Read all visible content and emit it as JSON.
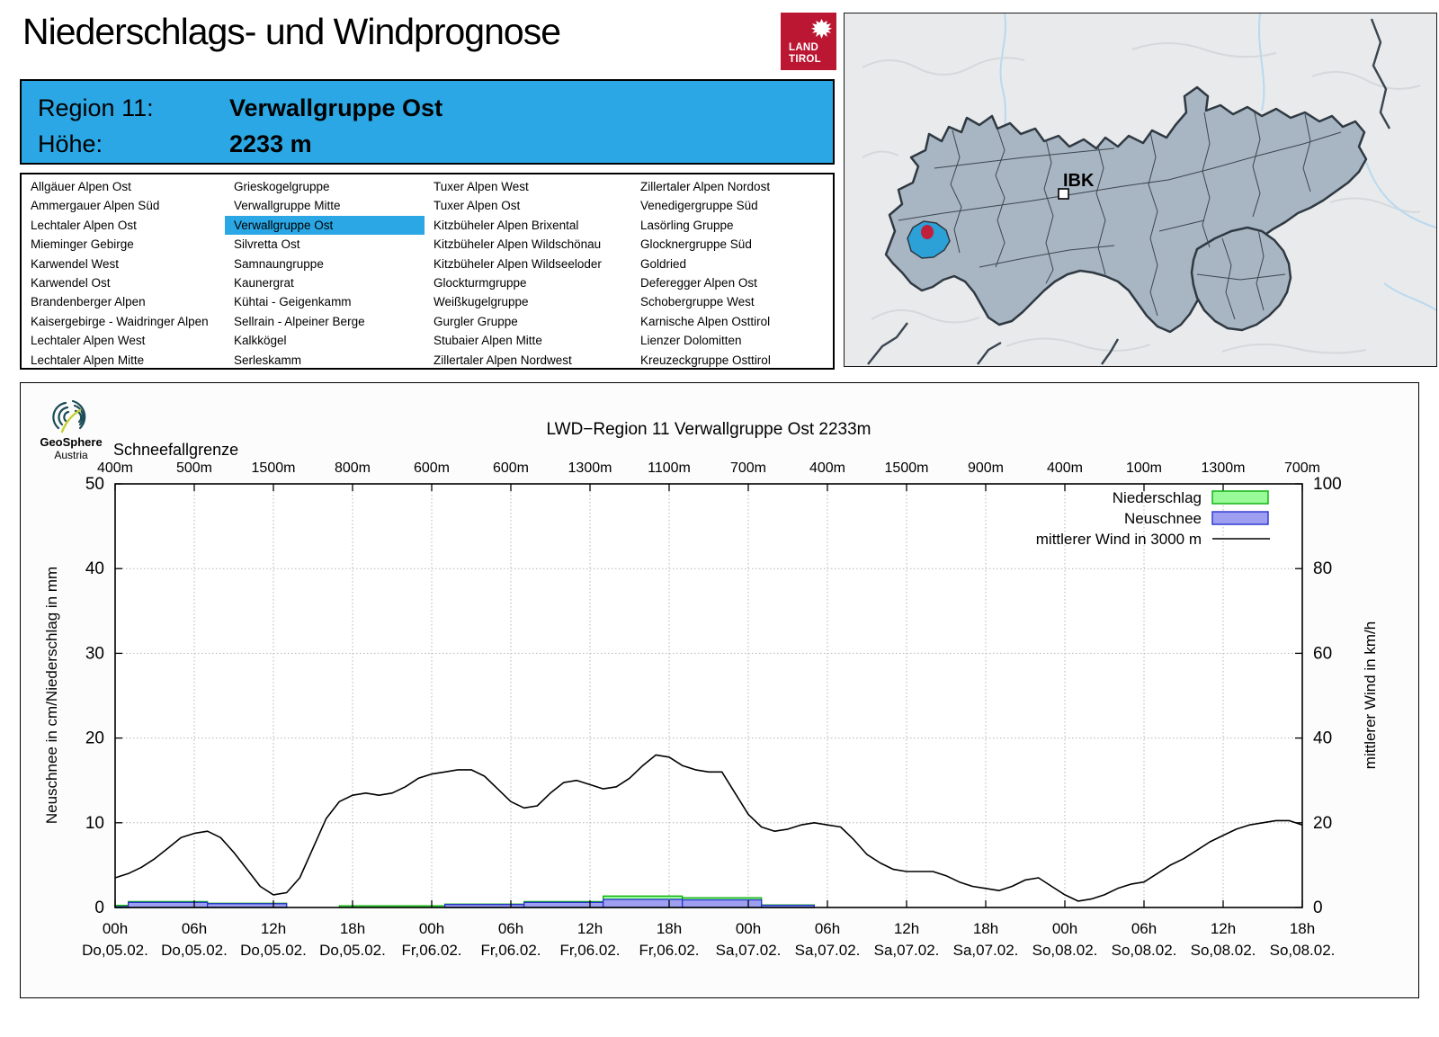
{
  "page": {
    "title": "Niederschlags- und Windprognose"
  },
  "land_tirol_logo": {
    "line1": "LAND",
    "line2": "TIROL",
    "color": "#bb1733",
    "icon": "tyrolean-eagle-icon"
  },
  "region_header": {
    "region_label": "Region 11:",
    "region_name": "Verwallgruppe Ost",
    "altitude_label": "Höhe:",
    "altitude_value": "2233 m",
    "bg_color": "#2aa7e4"
  },
  "region_list": {
    "selected": "Verwallgruppe Ost",
    "highlight_color": "#2aa7e4",
    "columns": [
      [
        "Allgäuer Alpen Ost",
        "Ammergauer Alpen Süd",
        "Lechtaler Alpen Ost",
        "Mieminger Gebirge",
        "Karwendel West",
        "Karwendel Ost",
        "Brandenberger Alpen",
        "Kaisergebirge - Waidringer Alpen",
        "Lechtaler Alpen West",
        "Lechtaler Alpen Mitte"
      ],
      [
        "Grieskogelgruppe",
        "Verwallgruppe Mitte",
        "Verwallgruppe Ost",
        "Silvretta Ost",
        "Samnaungruppe",
        "Kaunergrat",
        "Kühtai - Geigenkamm",
        "Sellrain - Alpeiner Berge",
        "Kalkkögel",
        "Serleskamm"
      ],
      [
        "Tuxer Alpen West",
        "Tuxer Alpen Ost",
        "Kitzbüheler Alpen Brixental",
        "Kitzbüheler Alpen Wildschönau",
        "Kitzbüheler Alpen Wildseeloder",
        "Glockturmgruppe",
        "Weißkugelgruppe",
        "Gurgler Gruppe",
        "Stubaier Alpen Mitte",
        "Zillertaler Alpen Nordwest"
      ],
      [
        "Zillertaler Alpen Nordost",
        "Venedigergruppe Süd",
        "Lasörling Gruppe",
        "Glocknergruppe Süd",
        "Goldried",
        "Deferegger Alpen Ost",
        "Schobergruppe West",
        "Karnische Alpen Osttirol",
        "Lienzer Dolomitten",
        "Kreuzeckgruppe Osttirol"
      ]
    ]
  },
  "map": {
    "city_label": "IBK",
    "region_fill": "#a8b5c2",
    "selected_fill": "#2ba1d8",
    "marker_color": "#c21f3a"
  },
  "geosphere_logo": {
    "name": "GeoSphere",
    "sub": "Austria"
  },
  "chart_data": {
    "type": "line",
    "title": "LWD−Region 11 Verwallgruppe Ost 2233m",
    "grid": true,
    "legend_position": "top-right",
    "snowline": {
      "label": "Schneefallgrenze",
      "values": [
        "400m",
        "500m",
        "1500m",
        "800m",
        "600m",
        "600m",
        "1300m",
        "1100m",
        "700m",
        "400m",
        "1500m",
        "900m",
        "400m",
        "100m",
        "1300m",
        "700m"
      ]
    },
    "left_axis": {
      "label": "Neuschnee in cm/Niederschlag in mm",
      "range": [
        0,
        50
      ],
      "ticks": [
        0,
        10,
        20,
        30,
        40,
        50
      ]
    },
    "right_axis": {
      "label": "mittlerer Wind in km/h",
      "range": [
        0,
        100
      ],
      "ticks": [
        0,
        20,
        40,
        60,
        80,
        100
      ]
    },
    "x_axis": {
      "hours_span": 90,
      "label_step_hours": 6,
      "labels": [
        {
          "time": "00h",
          "date": "Do,05.02."
        },
        {
          "time": "06h",
          "date": "Do,05.02."
        },
        {
          "time": "12h",
          "date": "Do,05.02."
        },
        {
          "time": "18h",
          "date": "Do,05.02."
        },
        {
          "time": "00h",
          "date": "Fr,06.02."
        },
        {
          "time": "06h",
          "date": "Fr,06.02."
        },
        {
          "time": "12h",
          "date": "Fr,06.02."
        },
        {
          "time": "18h",
          "date": "Fr,06.02."
        },
        {
          "time": "00h",
          "date": "Sa,07.02."
        },
        {
          "time": "06h",
          "date": "Sa,07.02."
        },
        {
          "time": "12h",
          "date": "Sa,07.02."
        },
        {
          "time": "18h",
          "date": "Sa,07.02."
        },
        {
          "time": "00h",
          "date": "So,08.02."
        },
        {
          "time": "06h",
          "date": "So,08.02."
        },
        {
          "time": "12h",
          "date": "So,08.02."
        },
        {
          "time": "18h",
          "date": "So,08.02."
        }
      ]
    },
    "legend": [
      {
        "label": "Niederschlag",
        "swatch": "box",
        "fill": "#98fa98",
        "stroke": "#09b009"
      },
      {
        "label": "Neuschnee",
        "swatch": "box",
        "fill": "#9f9ff2",
        "stroke": "#2633cc"
      },
      {
        "label": "mittlerer Wind in 3000 m",
        "swatch": "line",
        "stroke": "#000000"
      }
    ],
    "series": [
      {
        "name": "mittlerer Wind in 3000 m",
        "type": "line",
        "axis": "right",
        "unit": "km/h",
        "x_hours": [
          0,
          1,
          2,
          3,
          4,
          5,
          6,
          7,
          8,
          9,
          10,
          11,
          12,
          13,
          14,
          15,
          16,
          17,
          18,
          19,
          20,
          21,
          22,
          23,
          24,
          25,
          26,
          27,
          28,
          29,
          30,
          31,
          32,
          33,
          34,
          35,
          36,
          37,
          38,
          39,
          40,
          41,
          42,
          43,
          44,
          45,
          46,
          47,
          48,
          49,
          50,
          51,
          52,
          53,
          54,
          55,
          56,
          57,
          58,
          59,
          60,
          61,
          62,
          63,
          64,
          65,
          66,
          67,
          68,
          69,
          70,
          71,
          72,
          73,
          74,
          75,
          76,
          77,
          78,
          79,
          80,
          81,
          82,
          83,
          84,
          85,
          86,
          87,
          88,
          89,
          90
        ],
        "values": [
          7,
          8,
          9.5,
          11.5,
          14,
          16.5,
          17.5,
          18,
          16.5,
          13,
          9,
          5,
          3,
          3.5,
          7,
          14,
          21,
          25,
          26.5,
          27,
          26.5,
          27,
          28.5,
          30.5,
          31.5,
          32,
          32.5,
          32.5,
          31,
          28,
          25,
          23.5,
          24,
          27,
          29.5,
          30,
          29,
          28,
          28.5,
          30.5,
          33.5,
          36,
          35.5,
          33.5,
          32.5,
          32,
          32,
          27,
          22,
          19,
          18,
          18.5,
          19.5,
          20,
          19.5,
          19,
          16,
          12.5,
          10.5,
          9,
          8.5,
          8.5,
          8.5,
          7.5,
          6,
          5,
          4.5,
          4,
          5,
          6.5,
          7,
          5,
          3,
          1.5,
          2,
          3,
          4.5,
          5.5,
          6,
          8,
          10,
          11.5,
          13.5,
          15.5,
          17,
          18.5,
          19.5,
          20,
          20.5,
          20.5,
          19.5
        ]
      },
      {
        "name": "Niederschlag",
        "type": "bar",
        "axis": "left",
        "unit": "mm",
        "segments": [
          {
            "from_hour": 0,
            "to_hour": 1,
            "value": 0.25
          },
          {
            "from_hour": 1,
            "to_hour": 7,
            "value": 0.7
          },
          {
            "from_hour": 7,
            "to_hour": 13,
            "value": 0.5
          },
          {
            "from_hour": 17,
            "to_hour": 25,
            "value": 0.2
          },
          {
            "from_hour": 25,
            "to_hour": 31,
            "value": 0.4
          },
          {
            "from_hour": 31,
            "to_hour": 37,
            "value": 0.7
          },
          {
            "from_hour": 37,
            "to_hour": 43,
            "value": 1.35
          },
          {
            "from_hour": 43,
            "to_hour": 49,
            "value": 1.15
          },
          {
            "from_hour": 49,
            "to_hour": 53,
            "value": 0.3
          }
        ]
      },
      {
        "name": "Neuschnee",
        "type": "bar",
        "axis": "left",
        "unit": "cm",
        "segments": [
          {
            "from_hour": 0,
            "to_hour": 1,
            "value": 0.1
          },
          {
            "from_hour": 1,
            "to_hour": 7,
            "value": 0.6
          },
          {
            "from_hour": 7,
            "to_hour": 13,
            "value": 0.45
          },
          {
            "from_hour": 25,
            "to_hour": 31,
            "value": 0.35
          },
          {
            "from_hour": 31,
            "to_hour": 37,
            "value": 0.6
          },
          {
            "from_hour": 37,
            "to_hour": 43,
            "value": 0.95
          },
          {
            "from_hour": 43,
            "to_hour": 49,
            "value": 0.9
          },
          {
            "from_hour": 49,
            "to_hour": 53,
            "value": 0.25
          }
        ]
      }
    ]
  }
}
